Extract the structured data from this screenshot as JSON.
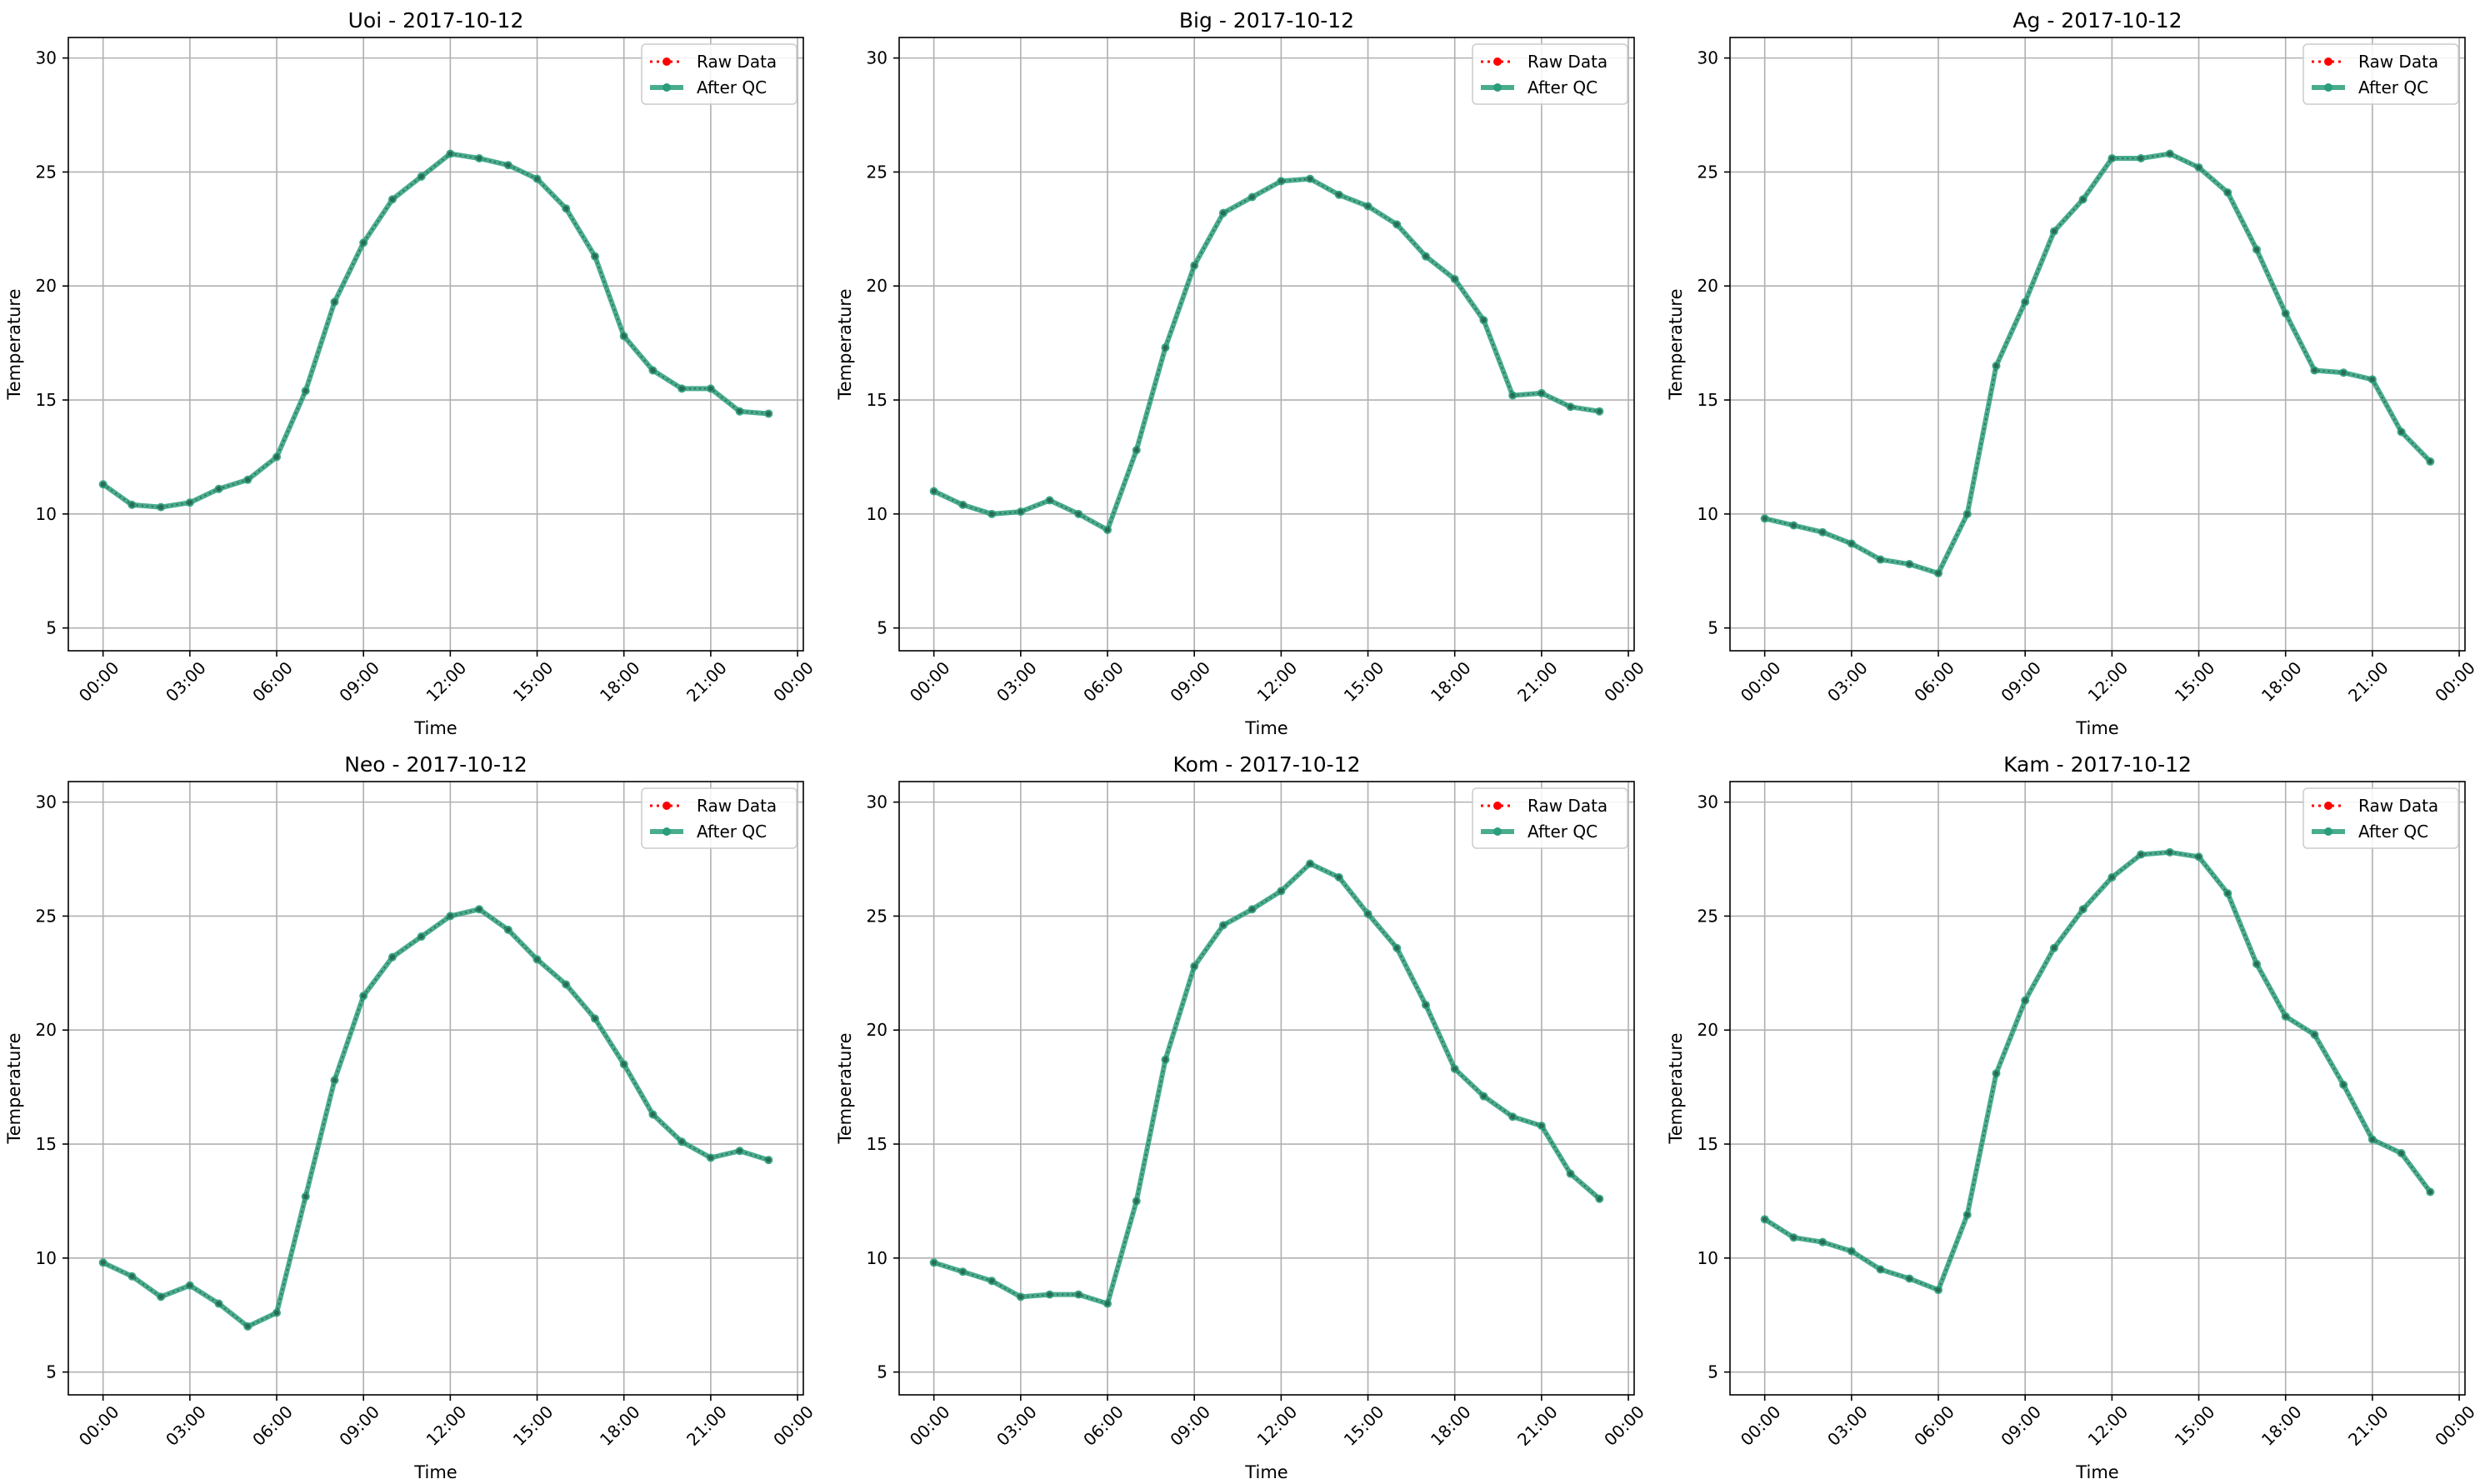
{
  "chart_data": [
    {
      "type": "line",
      "title": "Uoi - 2017-10-12",
      "xlabel": "Time",
      "ylabel": "Temperature",
      "ylim": [
        4,
        30.9
      ],
      "yticks": [
        5,
        10,
        15,
        20,
        25,
        30
      ],
      "xlim_hours": [
        -1.2,
        24.2
      ],
      "xticks": [
        "00:00",
        "03:00",
        "06:00",
        "09:00",
        "12:00",
        "15:00",
        "18:00",
        "21:00",
        "00:00"
      ],
      "grid": true,
      "legend_position": "upper right",
      "x": [
        "00:00",
        "01:00",
        "02:00",
        "03:00",
        "04:00",
        "05:00",
        "06:00",
        "07:00",
        "08:00",
        "09:00",
        "10:00",
        "11:00",
        "12:00",
        "13:00",
        "14:00",
        "15:00",
        "16:00",
        "17:00",
        "18:00",
        "19:00",
        "20:00",
        "21:00",
        "22:00",
        "23:00"
      ],
      "series": [
        {
          "name": "Raw Data",
          "color": "#ff0000",
          "style": "dotted",
          "values": [
            11.3,
            10.4,
            10.3,
            10.5,
            11.1,
            11.5,
            12.5,
            15.4,
            19.3,
            21.9,
            23.8,
            24.8,
            25.8,
            25.6,
            25.3,
            24.7,
            23.4,
            21.3,
            17.8,
            16.3,
            15.5,
            15.5,
            14.5,
            14.4
          ]
        },
        {
          "name": "After QC",
          "color": "#2a9d7a",
          "style": "solid",
          "values": [
            11.3,
            10.4,
            10.3,
            10.5,
            11.1,
            11.5,
            12.5,
            15.4,
            19.3,
            21.9,
            23.8,
            24.8,
            25.8,
            25.6,
            25.3,
            24.7,
            23.4,
            21.3,
            17.8,
            16.3,
            15.5,
            15.5,
            14.5,
            14.4
          ]
        }
      ]
    },
    {
      "type": "line",
      "title": "Big - 2017-10-12",
      "xlabel": "Time",
      "ylabel": "Temperature",
      "ylim": [
        4,
        30.9
      ],
      "yticks": [
        5,
        10,
        15,
        20,
        25,
        30
      ],
      "xlim_hours": [
        -1.2,
        24.2
      ],
      "xticks": [
        "00:00",
        "03:00",
        "06:00",
        "09:00",
        "12:00",
        "15:00",
        "18:00",
        "21:00",
        "00:00"
      ],
      "grid": true,
      "legend_position": "upper right",
      "x": [
        "00:00",
        "01:00",
        "02:00",
        "03:00",
        "04:00",
        "05:00",
        "06:00",
        "07:00",
        "08:00",
        "09:00",
        "10:00",
        "11:00",
        "12:00",
        "13:00",
        "14:00",
        "15:00",
        "16:00",
        "17:00",
        "18:00",
        "19:00",
        "20:00",
        "21:00",
        "22:00",
        "23:00"
      ],
      "series": [
        {
          "name": "Raw Data",
          "color": "#ff0000",
          "style": "dotted",
          "values": [
            11.0,
            10.4,
            10.0,
            10.1,
            10.6,
            10.0,
            9.3,
            12.8,
            17.3,
            20.9,
            23.2,
            23.9,
            24.6,
            24.7,
            24.0,
            23.5,
            22.7,
            21.3,
            20.3,
            18.5,
            15.2,
            15.3,
            14.7,
            14.5
          ]
        },
        {
          "name": "After QC",
          "color": "#2a9d7a",
          "style": "solid",
          "values": [
            11.0,
            10.4,
            10.0,
            10.1,
            10.6,
            10.0,
            9.3,
            12.8,
            17.3,
            20.9,
            23.2,
            23.9,
            24.6,
            24.7,
            24.0,
            23.5,
            22.7,
            21.3,
            20.3,
            18.5,
            15.2,
            15.3,
            14.7,
            14.5
          ]
        }
      ]
    },
    {
      "type": "line",
      "title": "Ag - 2017-10-12",
      "xlabel": "Time",
      "ylabel": "Temperature",
      "ylim": [
        4,
        30.9
      ],
      "yticks": [
        5,
        10,
        15,
        20,
        25,
        30
      ],
      "xlim_hours": [
        -1.2,
        24.2
      ],
      "xticks": [
        "00:00",
        "03:00",
        "06:00",
        "09:00",
        "12:00",
        "15:00",
        "18:00",
        "21:00",
        "00:00"
      ],
      "grid": true,
      "legend_position": "upper right",
      "x": [
        "00:00",
        "01:00",
        "02:00",
        "03:00",
        "04:00",
        "05:00",
        "06:00",
        "07:00",
        "08:00",
        "09:00",
        "10:00",
        "11:00",
        "12:00",
        "13:00",
        "14:00",
        "15:00",
        "16:00",
        "17:00",
        "18:00",
        "19:00",
        "20:00",
        "21:00",
        "22:00",
        "23:00"
      ],
      "series": [
        {
          "name": "Raw Data",
          "color": "#ff0000",
          "style": "dotted",
          "values": [
            9.8,
            9.5,
            9.2,
            8.7,
            8.0,
            7.8,
            7.4,
            10.0,
            16.5,
            19.3,
            22.4,
            23.8,
            25.6,
            25.6,
            25.8,
            25.2,
            24.1,
            21.6,
            18.8,
            16.3,
            16.2,
            15.9,
            13.6,
            12.3
          ]
        },
        {
          "name": "After QC",
          "color": "#2a9d7a",
          "style": "solid",
          "values": [
            9.8,
            9.5,
            9.2,
            8.7,
            8.0,
            7.8,
            7.4,
            10.0,
            16.5,
            19.3,
            22.4,
            23.8,
            25.6,
            25.6,
            25.8,
            25.2,
            24.1,
            21.6,
            18.8,
            16.3,
            16.2,
            15.9,
            13.6,
            12.3
          ]
        }
      ]
    },
    {
      "type": "line",
      "title": "Neo - 2017-10-12",
      "xlabel": "Time",
      "ylabel": "Temperature",
      "ylim": [
        4,
        30.9
      ],
      "yticks": [
        5,
        10,
        15,
        20,
        25,
        30
      ],
      "xlim_hours": [
        -1.2,
        24.2
      ],
      "xticks": [
        "00:00",
        "03:00",
        "06:00",
        "09:00",
        "12:00",
        "15:00",
        "18:00",
        "21:00",
        "00:00"
      ],
      "grid": true,
      "legend_position": "upper right",
      "x": [
        "00:00",
        "01:00",
        "02:00",
        "03:00",
        "04:00",
        "05:00",
        "06:00",
        "07:00",
        "08:00",
        "09:00",
        "10:00",
        "11:00",
        "12:00",
        "13:00",
        "14:00",
        "15:00",
        "16:00",
        "17:00",
        "18:00",
        "19:00",
        "20:00",
        "21:00",
        "22:00",
        "23:00"
      ],
      "series": [
        {
          "name": "Raw Data",
          "color": "#ff0000",
          "style": "dotted",
          "values": [
            9.8,
            9.2,
            8.3,
            8.8,
            8.0,
            7.0,
            7.6,
            12.7,
            17.8,
            21.5,
            23.2,
            24.1,
            25.0,
            25.3,
            24.4,
            23.1,
            22.0,
            20.5,
            18.5,
            16.3,
            15.1,
            14.4,
            14.7,
            14.3
          ]
        },
        {
          "name": "After QC",
          "color": "#2a9d7a",
          "style": "solid",
          "values": [
            9.8,
            9.2,
            8.3,
            8.8,
            8.0,
            7.0,
            7.6,
            12.7,
            17.8,
            21.5,
            23.2,
            24.1,
            25.0,
            25.3,
            24.4,
            23.1,
            22.0,
            20.5,
            18.5,
            16.3,
            15.1,
            14.4,
            14.7,
            14.3
          ]
        }
      ]
    },
    {
      "type": "line",
      "title": "Kom - 2017-10-12",
      "xlabel": "Time",
      "ylabel": "Temperature",
      "ylim": [
        4,
        30.9
      ],
      "yticks": [
        5,
        10,
        15,
        20,
        25,
        30
      ],
      "xlim_hours": [
        -1.2,
        24.2
      ],
      "xticks": [
        "00:00",
        "03:00",
        "06:00",
        "09:00",
        "12:00",
        "15:00",
        "18:00",
        "21:00",
        "00:00"
      ],
      "grid": true,
      "legend_position": "upper right",
      "x": [
        "00:00",
        "01:00",
        "02:00",
        "03:00",
        "04:00",
        "05:00",
        "06:00",
        "07:00",
        "08:00",
        "09:00",
        "10:00",
        "11:00",
        "12:00",
        "13:00",
        "14:00",
        "15:00",
        "16:00",
        "17:00",
        "18:00",
        "19:00",
        "20:00",
        "21:00",
        "22:00",
        "23:00"
      ],
      "series": [
        {
          "name": "Raw Data",
          "color": "#ff0000",
          "style": "dotted",
          "values": [
            9.8,
            9.4,
            9.0,
            8.3,
            8.4,
            8.4,
            8.0,
            12.5,
            18.7,
            22.8,
            24.6,
            25.3,
            26.1,
            27.3,
            26.7,
            25.1,
            23.6,
            21.1,
            18.3,
            17.1,
            16.2,
            15.8,
            13.7,
            12.6
          ]
        },
        {
          "name": "After QC",
          "color": "#2a9d7a",
          "style": "solid",
          "values": [
            9.8,
            9.4,
            9.0,
            8.3,
            8.4,
            8.4,
            8.0,
            12.5,
            18.7,
            22.8,
            24.6,
            25.3,
            26.1,
            27.3,
            26.7,
            25.1,
            23.6,
            21.1,
            18.3,
            17.1,
            16.2,
            15.8,
            13.7,
            12.6
          ]
        }
      ]
    },
    {
      "type": "line",
      "title": "Kam - 2017-10-12",
      "xlabel": "Time",
      "ylabel": "Temperature",
      "ylim": [
        4,
        30.9
      ],
      "yticks": [
        5,
        10,
        15,
        20,
        25,
        30
      ],
      "xlim_hours": [
        -1.2,
        24.2
      ],
      "xticks": [
        "00:00",
        "03:00",
        "06:00",
        "09:00",
        "12:00",
        "15:00",
        "18:00",
        "21:00",
        "00:00"
      ],
      "grid": true,
      "legend_position": "upper right",
      "x": [
        "00:00",
        "01:00",
        "02:00",
        "03:00",
        "04:00",
        "05:00",
        "06:00",
        "07:00",
        "08:00",
        "09:00",
        "10:00",
        "11:00",
        "12:00",
        "13:00",
        "14:00",
        "15:00",
        "16:00",
        "17:00",
        "18:00",
        "19:00",
        "20:00",
        "21:00",
        "22:00",
        "23:00"
      ],
      "series": [
        {
          "name": "Raw Data",
          "color": "#ff0000",
          "style": "dotted",
          "values": [
            11.7,
            10.9,
            10.7,
            10.3,
            9.5,
            9.1,
            8.6,
            11.9,
            18.1,
            21.3,
            23.6,
            25.3,
            26.7,
            27.7,
            27.8,
            27.6,
            26.0,
            22.9,
            20.6,
            19.8,
            17.6,
            15.2,
            14.6,
            12.9
          ]
        },
        {
          "name": "After QC",
          "color": "#2a9d7a",
          "style": "solid",
          "values": [
            11.7,
            10.9,
            10.7,
            10.3,
            9.5,
            9.1,
            8.6,
            11.9,
            18.1,
            21.3,
            23.6,
            25.3,
            26.7,
            27.7,
            27.8,
            27.6,
            26.0,
            22.9,
            20.6,
            19.8,
            17.6,
            15.2,
            14.6,
            12.9
          ]
        }
      ]
    }
  ]
}
